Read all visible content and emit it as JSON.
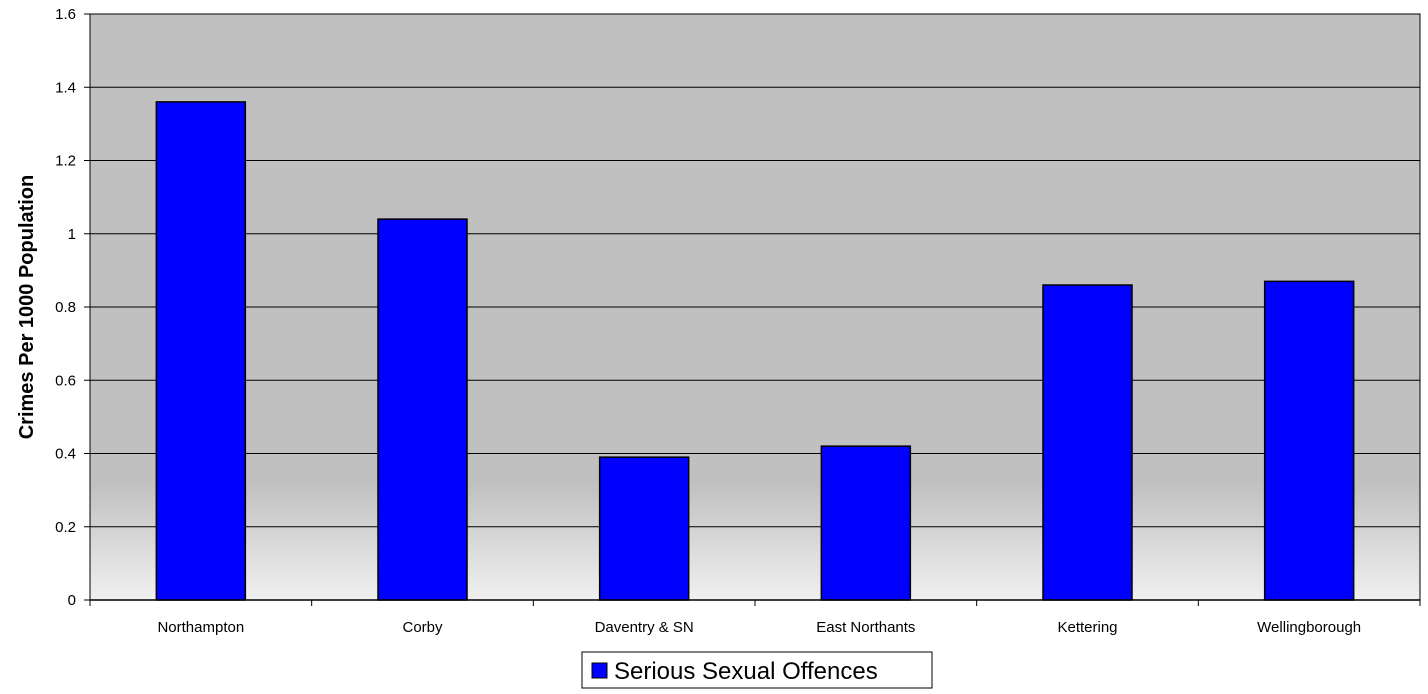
{
  "chart_data": {
    "type": "bar",
    "title": "",
    "xlabel": "",
    "ylabel": "Crimes Per 1000 Population",
    "categories": [
      "Northampton",
      "Corby",
      "Daventry & SN",
      "East Northants",
      "Kettering",
      "Wellingborough"
    ],
    "series": [
      {
        "name": "Serious Sexual Offences",
        "values": [
          1.36,
          1.04,
          0.39,
          0.42,
          0.86,
          0.87
        ],
        "color": "#0000ff"
      }
    ],
    "ylim": [
      0,
      1.6
    ],
    "yticks": [
      "0",
      "0.2",
      "0.4",
      "0.6",
      "0.8",
      "1",
      "1.2",
      "1.4",
      "1.6"
    ],
    "grid": true,
    "legend_position": "bottom-center",
    "colors": {
      "plot_background_top": "#c0c0c0",
      "plot_background_bottom": "#f2f2f2",
      "bar": "#0000ff",
      "gridline": "#000000"
    }
  }
}
